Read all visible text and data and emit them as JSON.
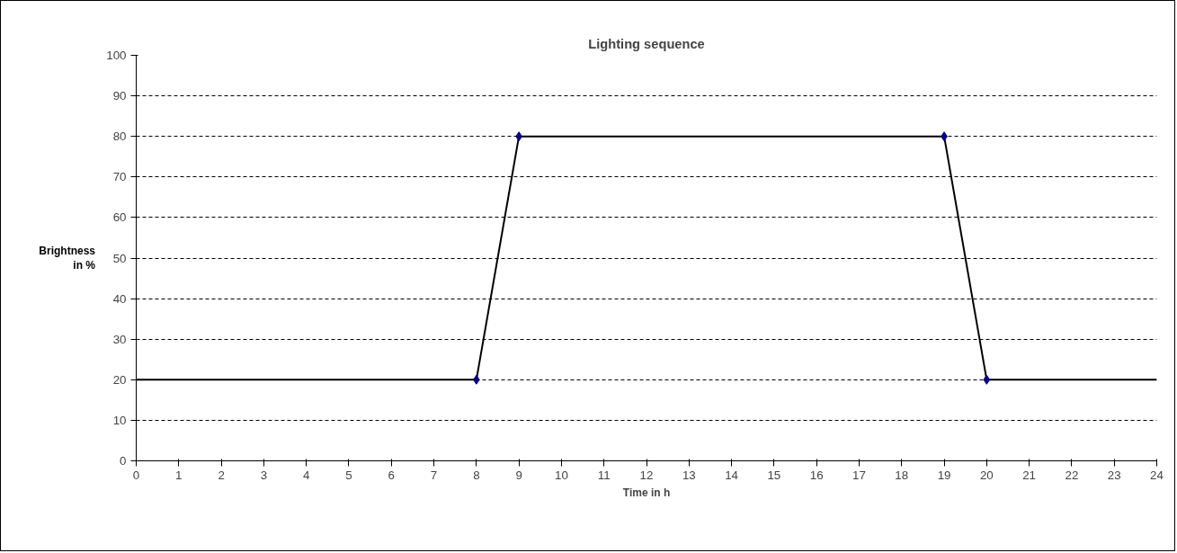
{
  "chart_data": {
    "type": "line",
    "title": "Lighting sequence",
    "xlabel": "Time in h",
    "ylabel": "Brightness in %",
    "xlim": [
      0,
      24
    ],
    "xticks": [
      0,
      1,
      2,
      3,
      4,
      5,
      6,
      7,
      8,
      9,
      10,
      11,
      12,
      13,
      14,
      15,
      16,
      17,
      18,
      19,
      20,
      21,
      22,
      23,
      24
    ],
    "ylim": [
      0,
      100
    ],
    "yticks": [
      0,
      10,
      20,
      30,
      40,
      50,
      60,
      70,
      80,
      90,
      100
    ],
    "grid": "y",
    "legend": false,
    "series": [
      {
        "type": "line",
        "color": "#000000",
        "marker": "none",
        "line_style": "solid",
        "x": [
          0,
          8,
          9,
          19,
          20,
          24
        ],
        "values": [
          20,
          20,
          80,
          80,
          20,
          20
        ]
      },
      {
        "type": "scatter",
        "color": "#000080",
        "marker": "diamond",
        "x": [
          8,
          9,
          19,
          20
        ],
        "values": [
          20,
          80,
          80,
          20
        ]
      }
    ]
  }
}
